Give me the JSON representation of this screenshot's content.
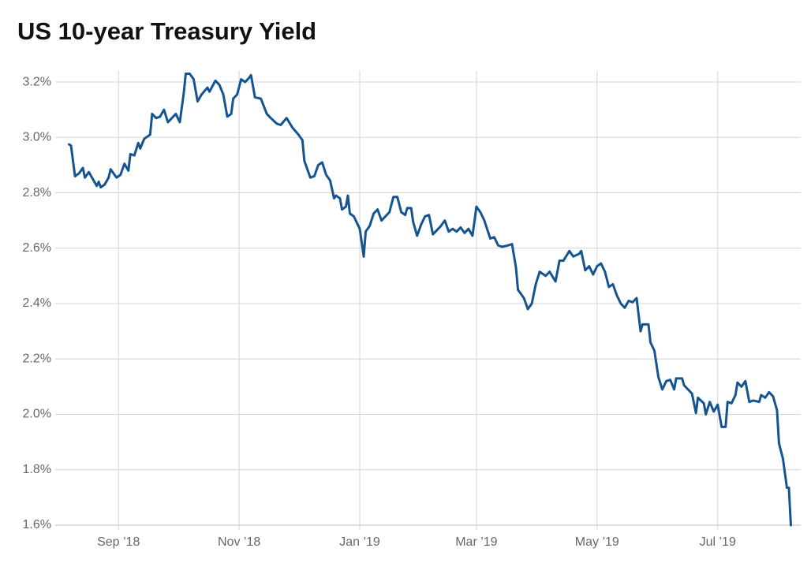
{
  "chart_data": {
    "type": "line",
    "title": "US 10-year Treasury Yield",
    "color": "#15548f",
    "x": [
      0,
      1,
      3,
      5,
      7,
      8,
      10,
      12,
      14,
      15,
      16,
      18,
      20,
      21,
      24,
      26,
      28,
      30,
      31,
      33,
      35,
      36,
      38,
      41,
      42,
      44,
      46,
      48,
      50,
      52,
      54,
      56,
      58,
      59,
      61,
      63,
      65,
      67,
      70,
      71,
      74,
      76,
      78,
      80,
      82,
      83,
      85,
      87,
      89,
      91,
      92,
      94,
      97,
      100,
      102,
      105,
      107,
      110,
      113,
      116,
      118,
      119,
      122,
      124,
      126,
      128,
      130,
      132,
      134,
      135,
      137,
      138,
      140,
      141,
      142,
      144,
      146,
      147,
      149,
      150,
      152,
      154,
      156,
      158,
      160,
      162,
      164,
      166,
      168,
      170,
      171,
      173,
      174,
      176,
      178,
      180,
      182,
      184,
      186,
      188,
      190,
      192,
      194,
      196,
      198,
      200,
      202,
      204,
      206,
      208,
      210,
      213,
      215,
      217,
      219,
      222,
      224,
      226,
      227,
      230,
      232,
      234,
      236,
      238,
      241,
      243,
      246,
      248,
      250,
      253,
      255,
      258,
      259,
      261,
      263,
      265,
      267,
      269,
      271,
      273,
      275,
      277,
      279,
      281,
      283,
      285,
      287,
      289,
      290,
      293,
      294,
      296,
      298,
      300,
      302,
      304,
      306,
      307,
      310,
      311,
      313,
      315,
      317,
      318,
      321,
      322,
      324,
      326,
      328,
      330,
      332,
      333,
      335,
      337,
      338,
      340,
      342,
      344,
      346,
      349,
      350,
      352,
      354,
      356,
      358,
      359,
      361,
      363,
      364,
      365
    ],
    "values": [
      2.975,
      2.97,
      2.86,
      2.87,
      2.89,
      2.855,
      2.875,
      2.85,
      2.825,
      2.84,
      2.82,
      2.83,
      2.855,
      2.885,
      2.855,
      2.865,
      2.905,
      2.88,
      2.94,
      2.935,
      2.98,
      2.96,
      2.995,
      3.01,
      3.085,
      3.07,
      3.075,
      3.1,
      3.055,
      3.07,
      3.085,
      3.055,
      3.16,
      3.23,
      3.23,
      3.21,
      3.13,
      3.155,
      3.18,
      3.165,
      3.205,
      3.19,
      3.155,
      3.075,
      3.085,
      3.14,
      3.155,
      3.21,
      3.2,
      3.215,
      3.225,
      3.145,
      3.14,
      3.085,
      3.07,
      3.05,
      3.045,
      3.07,
      3.035,
      3.01,
      2.99,
      2.915,
      2.855,
      2.86,
      2.9,
      2.91,
      2.865,
      2.845,
      2.78,
      2.79,
      2.78,
      2.74,
      2.75,
      2.79,
      2.725,
      2.715,
      2.685,
      2.67,
      2.57,
      2.66,
      2.68,
      2.725,
      2.74,
      2.7,
      2.715,
      2.73,
      2.785,
      2.785,
      2.73,
      2.72,
      2.745,
      2.745,
      2.695,
      2.645,
      2.685,
      2.715,
      2.72,
      2.65,
      2.665,
      2.68,
      2.7,
      2.66,
      2.67,
      2.66,
      2.675,
      2.655,
      2.67,
      2.645,
      2.75,
      2.73,
      2.7,
      2.635,
      2.64,
      2.61,
      2.605,
      2.61,
      2.615,
      2.53,
      2.45,
      2.42,
      2.38,
      2.4,
      2.47,
      2.515,
      2.5,
      2.515,
      2.48,
      2.555,
      2.555,
      2.59,
      2.57,
      2.58,
      2.59,
      2.52,
      2.535,
      2.505,
      2.535,
      2.545,
      2.515,
      2.46,
      2.47,
      2.43,
      2.4,
      2.385,
      2.41,
      2.405,
      2.42,
      2.3,
      2.325,
      2.325,
      2.26,
      2.23,
      2.135,
      2.09,
      2.12,
      2.125,
      2.09,
      2.13,
      2.13,
      2.105,
      2.09,
      2.075,
      2.005,
      2.06,
      2.04,
      2.0,
      2.045,
      2.01,
      2.035,
      1.955,
      1.955,
      2.045,
      2.04,
      2.07,
      2.115,
      2.1,
      2.12,
      2.045,
      2.05,
      2.045,
      2.07,
      2.06,
      2.08,
      2.065,
      2.015,
      1.895,
      1.84,
      1.735,
      1.735,
      1.6
    ],
    "xlim": [
      -7,
      370
    ],
    "xticks": [
      {
        "value": 25,
        "label": "Sep ’18"
      },
      {
        "value": 86,
        "label": "Nov ’18"
      },
      {
        "value": 147,
        "label": "Jan ’19"
      },
      {
        "value": 206,
        "label": "Mar ’19"
      },
      {
        "value": 267,
        "label": "May ’19"
      },
      {
        "value": 328,
        "label": "Jul ’19"
      }
    ],
    "ylim": [
      1.6,
      3.24
    ],
    "yticks": [
      {
        "value": 1.6,
        "label": "1.6%"
      },
      {
        "value": 1.8,
        "label": "1.8%"
      },
      {
        "value": 2.0,
        "label": "2.0%"
      },
      {
        "value": 2.2,
        "label": "2.2%"
      },
      {
        "value": 2.4,
        "label": "2.4%"
      },
      {
        "value": 2.6,
        "label": "2.6%"
      },
      {
        "value": 2.8,
        "label": "2.8%"
      },
      {
        "value": 3.0,
        "label": "3.0%"
      },
      {
        "value": 3.2,
        "label": "3.2%"
      }
    ],
    "grid": true
  }
}
